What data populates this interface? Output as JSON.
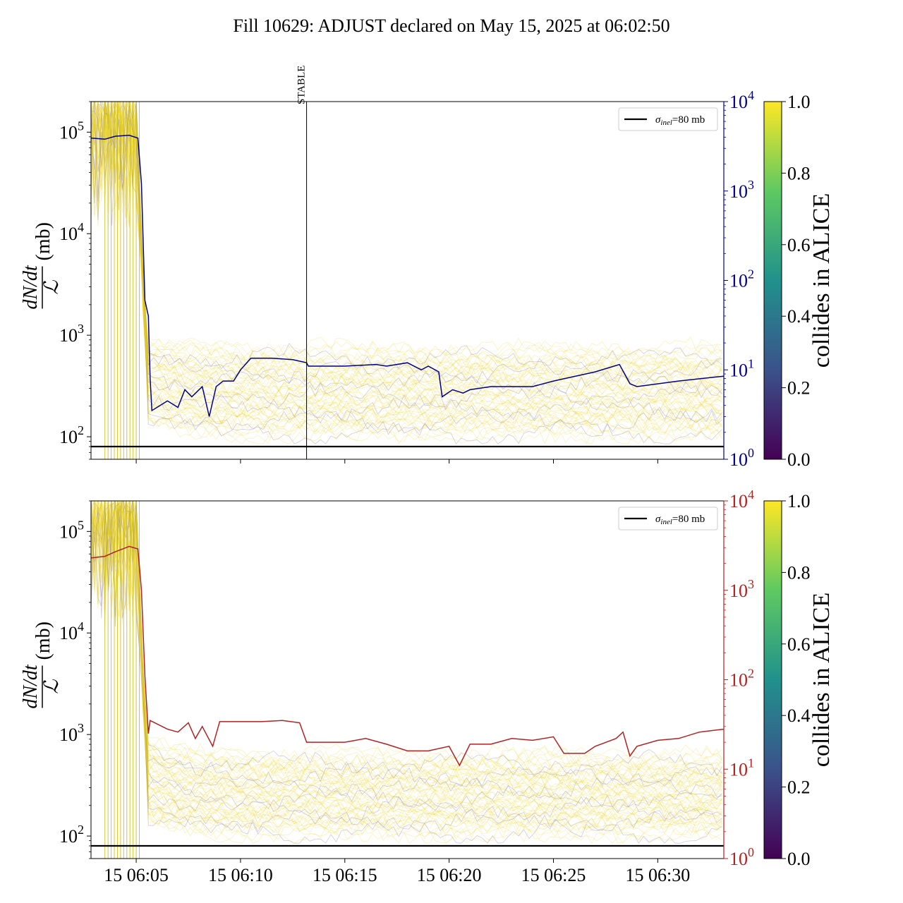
{
  "title": "Fill 10629: ADJUST declared on May 15, 2025 at 06:02:50",
  "colors": {
    "top_secondary": "#00008b",
    "bottom_secondary": "#b22222",
    "reference_line": "#000000",
    "colormap": [
      "#440154",
      "#3b528b",
      "#21918c",
      "#5ec962",
      "#fde725"
    ]
  },
  "chart_data": [
    {
      "type": "line",
      "panel": "top",
      "y_log": true,
      "ylim": [
        60,
        200000
      ],
      "y2_log": true,
      "y2lim": [
        1,
        10000
      ],
      "xlim": [
        "06:02:50",
        "06:33:10"
      ],
      "x_ticks": [],
      "y_ticks": [
        {
          "value": 100,
          "base": "10",
          "exp": "2"
        },
        {
          "value": 1000,
          "base": "10",
          "exp": "3"
        },
        {
          "value": 10000,
          "base": "10",
          "exp": "4"
        },
        {
          "value": 100000,
          "base": "10",
          "exp": "5"
        }
      ],
      "y2_ticks": [
        {
          "value": 1,
          "base": "10",
          "exp": "0"
        },
        {
          "value": 10,
          "base": "10",
          "exp": "1"
        },
        {
          "value": 100,
          "base": "10",
          "exp": "2"
        },
        {
          "value": 1000,
          "base": "10",
          "exp": "3"
        },
        {
          "value": 10000,
          "base": "10",
          "exp": "4"
        }
      ],
      "ylabel_num": "dN/dt",
      "ylabel_den": "ℒ",
      "ylabel_unit": "(mb)",
      "legend": {
        "label_sym": "σ",
        "label_sub": "inel",
        "label_rest": "=80 mb",
        "placement": "upper right"
      },
      "reference_value": 80,
      "vline": {
        "x": "06:13:10",
        "label": "STABLE"
      },
      "secondary_series": {
        "color": "#00008b",
        "points": [
          [
            "06:02:50",
            3900
          ],
          [
            "06:03:30",
            3800
          ],
          [
            "06:04:00",
            4100
          ],
          [
            "06:04:40",
            4200
          ],
          [
            "06:05:05",
            3900
          ],
          [
            "06:05:15",
            1200
          ],
          [
            "06:05:25",
            60
          ],
          [
            "06:05:35",
            40
          ],
          [
            "06:05:40",
            8
          ],
          [
            "06:05:45",
            3.5
          ],
          [
            "06:06:30",
            4.5
          ],
          [
            "06:07:00",
            3.8
          ],
          [
            "06:07:20",
            6
          ],
          [
            "06:07:40",
            5
          ],
          [
            "06:08:10",
            6.5
          ],
          [
            "06:08:30",
            3
          ],
          [
            "06:08:50",
            6.5
          ],
          [
            "06:09:10",
            7.5
          ],
          [
            "06:09:40",
            7.5
          ],
          [
            "06:10:00",
            10
          ],
          [
            "06:10:30",
            13.5
          ],
          [
            "06:11:30",
            13.5
          ],
          [
            "06:12:30",
            13
          ],
          [
            "06:13:10",
            12
          ],
          [
            "06:13:15",
            11
          ],
          [
            "06:15:00",
            11
          ],
          [
            "06:16:30",
            11.5
          ],
          [
            "06:17:00",
            11
          ],
          [
            "06:18:00",
            12
          ],
          [
            "06:18:40",
            10
          ],
          [
            "06:19:00",
            11
          ],
          [
            "06:19:30",
            9.5
          ],
          [
            "06:19:40",
            5
          ],
          [
            "06:20:10",
            6
          ],
          [
            "06:20:40",
            5.5
          ],
          [
            "06:21:00",
            6
          ],
          [
            "06:22:00",
            6.5
          ],
          [
            "06:23:00",
            6.5
          ],
          [
            "06:24:00",
            6.5
          ],
          [
            "06:25:00",
            7.5
          ],
          [
            "06:27:00",
            9.5
          ],
          [
            "06:28:10",
            11.5
          ],
          [
            "06:28:40",
            7
          ],
          [
            "06:29:00",
            6.5
          ],
          [
            "06:31:00",
            7.5
          ],
          [
            "06:33:10",
            8.5
          ]
        ]
      },
      "bunch_band": {
        "lower_start": 150,
        "upper_start": 900,
        "lower_mid": 110,
        "upper_mid": 700
      },
      "colorbar": {
        "label": "collides in ALICE",
        "ticks": [
          "0.0",
          "0.2",
          "0.4",
          "0.6",
          "0.8",
          "1.0"
        ]
      }
    },
    {
      "type": "line",
      "panel": "bottom",
      "y_log": true,
      "ylim": [
        60,
        200000
      ],
      "y2_log": true,
      "y2lim": [
        1,
        10000
      ],
      "xlim": [
        "06:02:50",
        "06:33:10"
      ],
      "x_ticks": [
        "15 06:05",
        "15 06:10",
        "15 06:15",
        "15 06:20",
        "15 06:25",
        "15 06:30"
      ],
      "x_tick_values": [
        "06:05:00",
        "06:10:00",
        "06:15:00",
        "06:20:00",
        "06:25:00",
        "06:30:00"
      ],
      "y_ticks": [
        {
          "value": 100,
          "base": "10",
          "exp": "2"
        },
        {
          "value": 1000,
          "base": "10",
          "exp": "3"
        },
        {
          "value": 10000,
          "base": "10",
          "exp": "4"
        },
        {
          "value": 100000,
          "base": "10",
          "exp": "5"
        }
      ],
      "y2_ticks": [
        {
          "value": 1,
          "base": "10",
          "exp": "0"
        },
        {
          "value": 10,
          "base": "10",
          "exp": "1"
        },
        {
          "value": 100,
          "base": "10",
          "exp": "2"
        },
        {
          "value": 1000,
          "base": "10",
          "exp": "3"
        },
        {
          "value": 10000,
          "base": "10",
          "exp": "4"
        }
      ],
      "ylabel_num": "dN/dt",
      "ylabel_den": "ℒ",
      "ylabel_unit": "(mb)",
      "legend": {
        "label_sym": "σ",
        "label_sub": "inel",
        "label_rest": "=80 mb",
        "placement": "upper right"
      },
      "reference_value": 80,
      "secondary_series": {
        "color": "#b22222",
        "points": [
          [
            "06:02:50",
            2300
          ],
          [
            "06:03:30",
            2400
          ],
          [
            "06:04:00",
            2700
          ],
          [
            "06:04:40",
            3100
          ],
          [
            "06:05:05",
            2900
          ],
          [
            "06:05:15",
            1000
          ],
          [
            "06:05:25",
            110
          ],
          [
            "06:05:35",
            25
          ],
          [
            "06:05:40",
            35
          ],
          [
            "06:06:30",
            28
          ],
          [
            "06:07:00",
            26
          ],
          [
            "06:07:30",
            33
          ],
          [
            "06:07:50",
            22
          ],
          [
            "06:08:10",
            30
          ],
          [
            "06:08:40",
            18
          ],
          [
            "06:09:00",
            34
          ],
          [
            "06:10:00",
            34
          ],
          [
            "06:11:00",
            34
          ],
          [
            "06:12:00",
            35
          ],
          [
            "06:12:50",
            33
          ],
          [
            "06:13:10",
            20
          ],
          [
            "06:15:00",
            20
          ],
          [
            "06:16:00",
            22
          ],
          [
            "06:17:00",
            19
          ],
          [
            "06:18:00",
            16
          ],
          [
            "06:19:00",
            16
          ],
          [
            "06:20:00",
            18
          ],
          [
            "06:20:30",
            11
          ],
          [
            "06:21:00",
            19
          ],
          [
            "06:22:00",
            19
          ],
          [
            "06:23:00",
            22
          ],
          [
            "06:24:00",
            21
          ],
          [
            "06:25:00",
            23
          ],
          [
            "06:25:30",
            15
          ],
          [
            "06:26:00",
            15
          ],
          [
            "06:26:30",
            15
          ],
          [
            "06:27:00",
            18
          ],
          [
            "06:28:00",
            22
          ],
          [
            "06:28:20",
            26
          ],
          [
            "06:28:40",
            14
          ],
          [
            "06:29:00",
            18
          ],
          [
            "06:30:00",
            21
          ],
          [
            "06:31:00",
            22
          ],
          [
            "06:32:00",
            26
          ],
          [
            "06:33:10",
            28
          ]
        ]
      },
      "bunch_band": {
        "lower_start": 150,
        "upper_start": 900,
        "lower_mid": 110,
        "upper_mid": 600
      },
      "colorbar": {
        "label": "collides in ALICE",
        "ticks": [
          "0.0",
          "0.2",
          "0.4",
          "0.6",
          "0.8",
          "1.0"
        ]
      }
    }
  ]
}
